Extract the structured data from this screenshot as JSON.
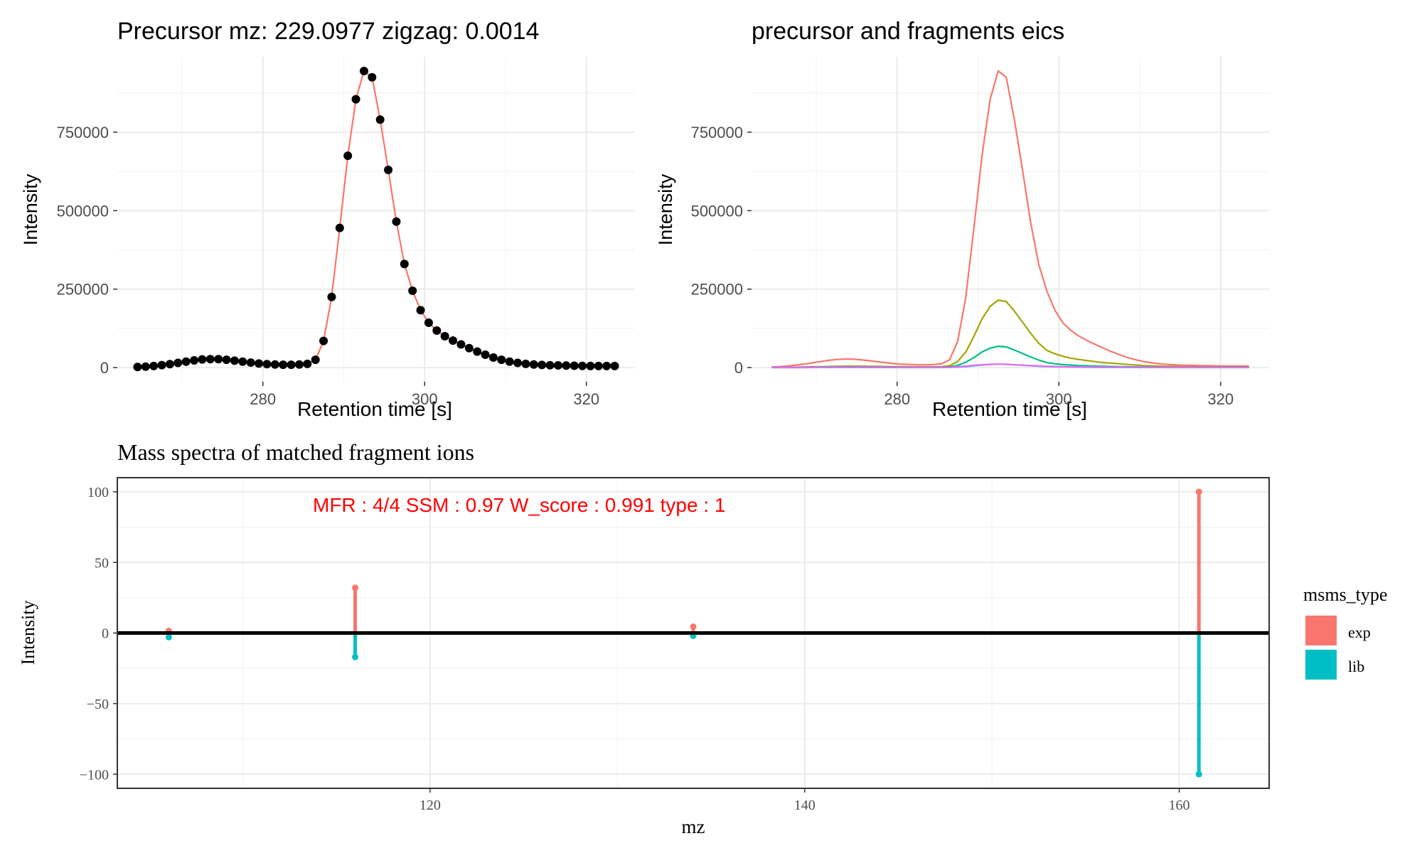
{
  "chart_data": [
    {
      "id": "p1",
      "type": "line+scatter",
      "title": "Precursor mz:  229.0977   zigzag:  0.0014",
      "xlabel": "Retention time [s]",
      "ylabel": "Intensity",
      "xlim": [
        262.0,
        326.0
      ],
      "ylim": [
        -45000,
        990000
      ],
      "x_ticks": [
        280,
        300,
        320
      ],
      "x_tick_labels": [
        "280",
        "300",
        "320"
      ],
      "y_ticks": [
        0,
        250000,
        500000,
        750000
      ],
      "y_tick_labels": [
        "0",
        "250000",
        "500000",
        "750000"
      ],
      "grid": true,
      "line_color": "#F8766D",
      "point_color": "#000000",
      "x": [
        264.5,
        265.5,
        266.5,
        267.5,
        268.5,
        269.5,
        270.5,
        271.5,
        272.5,
        273.5,
        274.5,
        275.5,
        276.5,
        277.5,
        278.5,
        279.5,
        280.5,
        281.5,
        282.5,
        283.5,
        284.5,
        285.5,
        286.5,
        287.5,
        288.5,
        289.5,
        290.5,
        291.5,
        292.5,
        293.5,
        294.5,
        295.5,
        296.5,
        297.5,
        298.5,
        299.5,
        300.5,
        301.5,
        302.5,
        303.5,
        304.5,
        305.5,
        306.5,
        307.5,
        308.5,
        309.5,
        310.5,
        311.5,
        312.5,
        313.5,
        314.5,
        315.5,
        316.5,
        317.5,
        318.5,
        319.5,
        320.5,
        321.5,
        322.5,
        323.5
      ],
      "y": [
        2000,
        3000,
        5000,
        8000,
        11000,
        15000,
        19000,
        23000,
        26000,
        27000,
        27000,
        25000,
        22000,
        19000,
        16000,
        13000,
        11000,
        10000,
        9000,
        9000,
        10000,
        12000,
        25000,
        85000,
        225000,
        445000,
        675000,
        855000,
        945000,
        925000,
        790000,
        630000,
        465000,
        330000,
        245000,
        183000,
        143000,
        118000,
        100000,
        86000,
        74000,
        62000,
        51000,
        41000,
        32000,
        25000,
        19000,
        15000,
        12000,
        10000,
        8500,
        7500,
        7000,
        6500,
        6000,
        5500,
        5000,
        5000,
        5000,
        5000
      ]
    },
    {
      "id": "p2",
      "type": "line",
      "title": "precursor and fragments eics",
      "xlabel": "Retention time [s]",
      "ylabel": "Intensity",
      "xlim": [
        262.0,
        326.0
      ],
      "ylim": [
        -45000,
        990000
      ],
      "x_ticks": [
        280,
        300,
        320
      ],
      "x_tick_labels": [
        "280",
        "300",
        "320"
      ],
      "y_ticks": [
        0,
        250000,
        500000,
        750000
      ],
      "y_tick_labels": [
        "0",
        "250000",
        "500000",
        "750000"
      ],
      "grid": true,
      "series": [
        {
          "color": "#F8766D",
          "y": [
            2000,
            3000,
            5000,
            8000,
            11000,
            15000,
            19000,
            23000,
            26000,
            27000,
            27000,
            25000,
            22000,
            19000,
            16000,
            13000,
            11000,
            10000,
            9000,
            9000,
            10000,
            12000,
            25000,
            85000,
            225000,
            445000,
            675000,
            855000,
            945000,
            925000,
            790000,
            630000,
            465000,
            330000,
            245000,
            183000,
            143000,
            118000,
            100000,
            86000,
            74000,
            62000,
            51000,
            41000,
            32000,
            25000,
            19000,
            15000,
            12000,
            10000,
            8500,
            7500,
            7000,
            6500,
            6000,
            5500,
            5000,
            5000,
            5000,
            5000
          ]
        },
        {
          "color": "#A3A500",
          "y": [
            1000,
            1000,
            1000,
            1500,
            2000,
            2500,
            3000,
            3500,
            4000,
            4500,
            4500,
            4500,
            4000,
            4000,
            3500,
            3000,
            3000,
            3000,
            2500,
            2500,
            2500,
            3000,
            6000,
            20000,
            50000,
            100000,
            155000,
            195000,
            215000,
            210000,
            180000,
            145000,
            110000,
            78000,
            55000,
            44000,
            36000,
            30000,
            26000,
            22000,
            19000,
            16000,
            14000,
            12000,
            10000,
            8000,
            6500,
            5500,
            4500,
            4000,
            3500,
            3000,
            3000,
            2500,
            2500,
            2500,
            2500,
            2500,
            2500,
            2500
          ]
        },
        {
          "color": "#00BF7D",
          "y": [
            500,
            500,
            500,
            800,
            1000,
            1200,
            1500,
            1700,
            2000,
            2000,
            2000,
            2000,
            2000,
            1800,
            1500,
            1500,
            1200,
            1200,
            1000,
            1000,
            1000,
            1200,
            2500,
            7000,
            17000,
            32000,
            50000,
            62000,
            68000,
            66000,
            56000,
            45000,
            34000,
            24000,
            16000,
            12000,
            9500,
            8000,
            6500,
            5500,
            4500,
            4000,
            3500,
            3000,
            2500,
            2000,
            1800,
            1500,
            1300,
            1200,
            1000,
            1000,
            1000,
            1000,
            1000,
            1000,
            1000,
            1000,
            1000,
            1000
          ]
        },
        {
          "color": "#00B0F6",
          "y": [
            300,
            300,
            300,
            300,
            400,
            500,
            500,
            600,
            700,
            700,
            700,
            700,
            600,
            600,
            500,
            500,
            400,
            400,
            400,
            400,
            400,
            500,
            800,
            1800,
            3500,
            6000,
            8500,
            10000,
            11000,
            10500,
            9000,
            7500,
            6000,
            4500,
            3500,
            2800,
            2300,
            2000,
            1700,
            1500,
            1300,
            1100,
            1000,
            900,
            800,
            700,
            600,
            500,
            500,
            400,
            400,
            400,
            400,
            400,
            400,
            400,
            400,
            400,
            400,
            400
          ]
        },
        {
          "color": "#E76BF3",
          "y": [
            200,
            200,
            200,
            300,
            400,
            600,
            800,
            1000,
            1200,
            1300,
            1300,
            1300,
            1200,
            1100,
            900,
            800,
            700,
            700,
            600,
            600,
            600,
            700,
            1200,
            2500,
            4500,
            7000,
            9000,
            10500,
            11000,
            10500,
            9200,
            7800,
            6300,
            5000,
            4000,
            3300,
            2800,
            2400,
            2100,
            1800,
            1600,
            1400,
            1200,
            1100,
            1000,
            900,
            800,
            700,
            600,
            600,
            500,
            500,
            500,
            500,
            500,
            500,
            500,
            500,
            500,
            500
          ]
        }
      ]
    },
    {
      "id": "p3",
      "type": "bar",
      "title": "Mass spectra of matched fragment ions",
      "xlabel": "mz",
      "ylabel": "Intensity",
      "xlim": [
        103.3,
        164.8
      ],
      "ylim": [
        -110,
        110
      ],
      "x_ticks": [
        120,
        140,
        160
      ],
      "x_tick_labels": [
        "120",
        "140",
        "160"
      ],
      "y_ticks": [
        -100,
        -50,
        0,
        50,
        100
      ],
      "y_tick_labels": [
        "−100",
        "−50",
        "0",
        "50",
        "100"
      ],
      "grid": true,
      "annotation": "MFR : 4/4  SSM : 0.97  W_score : 0.991  type : 1",
      "legend_position": "right",
      "legend": {
        "title": "msms_type",
        "items": [
          {
            "label": "exp",
            "color": "#F8766D"
          },
          {
            "label": "lib",
            "color": "#00BFC4"
          }
        ]
      },
      "series": [
        {
          "name": "exp",
          "color": "#F8766D",
          "x": [
            106.05,
            116.0,
            134.05,
            161.05
          ],
          "y": [
            1.5,
            32,
            4.5,
            100
          ]
        },
        {
          "name": "lib",
          "color": "#00BFC4",
          "x": [
            106.05,
            116.0,
            134.05,
            161.05
          ],
          "y": [
            -3,
            -17,
            -2,
            -100
          ]
        }
      ]
    }
  ]
}
